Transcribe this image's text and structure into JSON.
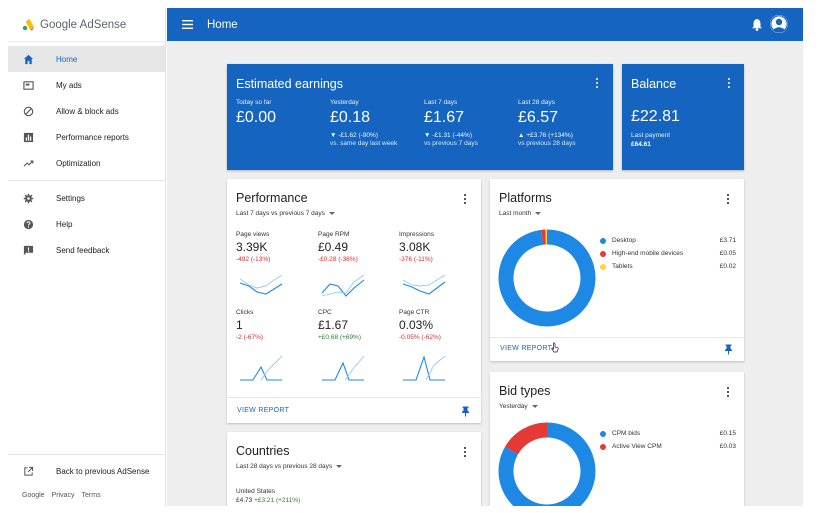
{
  "brand": {
    "name": "Google AdSense"
  },
  "sidebar": {
    "items": [
      {
        "label": "Home",
        "icon": "home-icon"
      },
      {
        "label": "My ads",
        "icon": "ads-icon"
      },
      {
        "label": "Allow & block ads",
        "icon": "block-icon"
      },
      {
        "label": "Performance reports",
        "icon": "bar-chart-icon"
      },
      {
        "label": "Optimization",
        "icon": "trending-up-icon"
      }
    ],
    "secondary": [
      {
        "label": "Settings",
        "icon": "gear-icon"
      },
      {
        "label": "Help",
        "icon": "help-icon"
      },
      {
        "label": "Send feedback",
        "icon": "feedback-icon"
      }
    ],
    "back_label": "Back to previous AdSense",
    "footer": {
      "google": "Google",
      "privacy": "Privacy",
      "terms": "Terms"
    }
  },
  "header": {
    "title": "Home"
  },
  "colors": {
    "primary": "#1565c0",
    "negative": "#d32f2f",
    "positive": "#2e7d32",
    "desktop": "#1e88e5",
    "mobile": "#e53935",
    "tablets": "#fdd835"
  },
  "earnings": {
    "title": "Estimated earnings",
    "stats": [
      {
        "label": "Today so far",
        "value": "£0.00",
        "delta": "",
        "sub": ""
      },
      {
        "label": "Yesterday",
        "value": "£0.18",
        "delta": "▼ -£1.62 (-90%)",
        "sub": "vs. same day last week"
      },
      {
        "label": "Last 7 days",
        "value": "£1.67",
        "delta": "▼ -£1.31 (-44%)",
        "sub": "vs previous 7 days"
      },
      {
        "label": "Last 28 days",
        "value": "£6.57",
        "delta": "▲ +£3.76 (+134%)",
        "sub": "vs previous 28 days"
      }
    ]
  },
  "balance": {
    "title": "Balance",
    "value": "£22.81",
    "last_payment_label": "Last payment",
    "last_payment_value": "£64.61"
  },
  "performance": {
    "title": "Performance",
    "range": "Last 7 days vs previous 7 days",
    "metrics": [
      {
        "label": "Page views",
        "value": "3.39K",
        "delta": "-492 (-13%)",
        "trend": "neg"
      },
      {
        "label": "Page RPM",
        "value": "£0.49",
        "delta": "-£0.28 (-36%)",
        "trend": "neg"
      },
      {
        "label": "Impressions",
        "value": "3.08K",
        "delta": "-376 (-11%)",
        "trend": "neg"
      },
      {
        "label": "Clicks",
        "value": "1",
        "delta": "-2 (-67%)",
        "trend": "neg"
      },
      {
        "label": "CPC",
        "value": "£1.67",
        "delta": "+£0.68 (+69%)",
        "trend": "pos"
      },
      {
        "label": "Page CTR",
        "value": "0.03%",
        "delta": "-0.05% (-62%)",
        "trend": "neg"
      }
    ],
    "view_report": "VIEW REPORT"
  },
  "platforms": {
    "title": "Platforms",
    "range": "Last month",
    "segments": [
      {
        "name": "Desktop",
        "value": "£3.71",
        "amount": 3.71,
        "color": "#1e88e5"
      },
      {
        "name": "High-end mobile devices",
        "value": "£0.05",
        "amount": 0.05,
        "color": "#e53935"
      },
      {
        "name": "Tablets",
        "value": "£0.02",
        "amount": 0.02,
        "color": "#fdd835"
      }
    ],
    "view_report": "VIEW REPORT"
  },
  "countries": {
    "title": "Countries",
    "range": "Last 28 days vs previous 28 days",
    "rows": [
      {
        "name": "United States",
        "value": "£4.73",
        "delta": "+£3.21 (+211%)"
      }
    ]
  },
  "bid_types": {
    "title": "Bid types",
    "range": "Yesterday",
    "segments": [
      {
        "name": "CPM bids",
        "value": "£0.15",
        "amount": 0.15,
        "color": "#1e88e5"
      },
      {
        "name": "Active View CPM",
        "value": "£0.03",
        "amount": 0.03,
        "color": "#e53935"
      }
    ]
  }
}
